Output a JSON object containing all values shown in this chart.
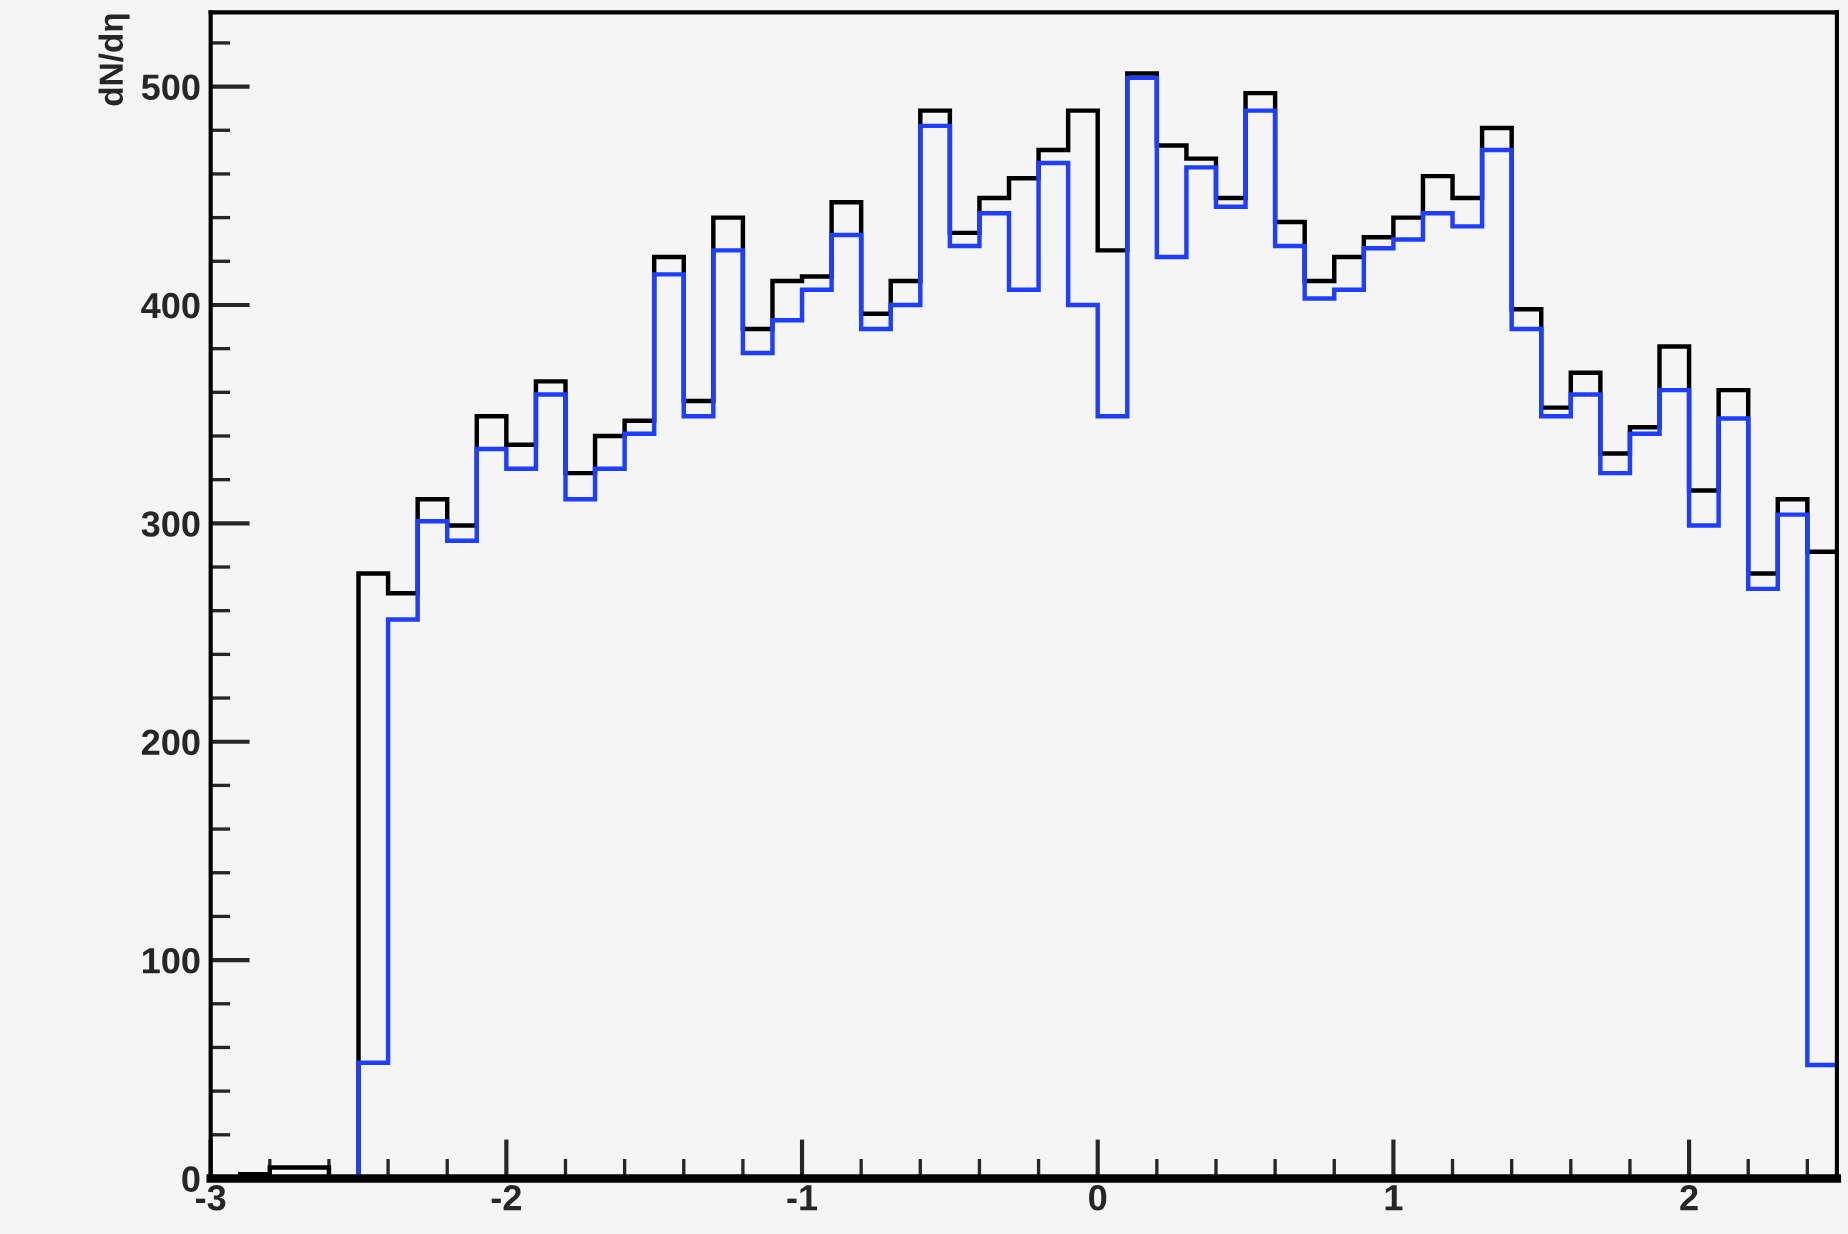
{
  "chart_data": {
    "type": "histogram",
    "ylabel": "dN/dη",
    "bins": [
      -3.0,
      -2.9,
      -2.8,
      -2.7,
      -2.6,
      -2.5,
      -2.4,
      -2.3,
      -2.2,
      -2.1,
      -2.0,
      -1.9,
      -1.8,
      -1.7,
      -1.6,
      -1.5,
      -1.4,
      -1.3,
      -1.2,
      -1.1,
      -1.0,
      -0.9,
      -0.8,
      -0.7,
      -0.6,
      -0.5,
      -0.4,
      -0.3,
      -0.2,
      -0.1,
      0.0,
      0.1,
      0.2,
      0.3,
      0.4,
      0.5,
      0.6,
      0.7,
      0.8,
      0.9,
      1.0,
      1.1,
      1.2,
      1.3,
      1.4,
      1.5,
      1.6,
      1.7,
      1.8,
      1.9,
      2.0,
      2.1,
      2.2,
      2.3,
      2.4,
      2.5
    ],
    "series": [
      {
        "color": "#000000",
        "values": [
          0,
          2,
          5,
          5,
          0,
          277,
          268,
          311,
          299,
          349,
          336,
          365,
          323,
          340,
          347,
          422,
          356,
          440,
          389,
          411,
          413,
          447,
          396,
          411,
          489,
          433,
          449,
          458,
          471,
          489,
          425,
          506,
          473,
          467,
          449,
          497,
          438,
          411,
          422,
          431,
          440,
          459,
          449,
          481,
          398,
          353,
          369,
          332,
          344,
          381,
          315,
          361,
          277,
          311,
          287
        ]
      },
      {
        "color": "#1f3fff",
        "values": [
          0,
          0,
          0,
          0,
          0,
          53,
          256,
          301,
          292,
          334,
          325,
          359,
          311,
          325,
          341,
          414,
          349,
          425,
          378,
          393,
          407,
          432,
          389,
          400,
          482,
          427,
          442,
          407,
          465,
          400,
          349,
          504,
          422,
          463,
          445,
          489,
          427,
          403,
          407,
          426,
          430,
          442,
          436,
          471,
          389,
          349,
          359,
          323,
          341,
          361,
          299,
          348,
          270,
          304,
          52
        ]
      }
    ],
    "xlim": [
      -3,
      2.5
    ],
    "xticks": [
      -3,
      -2,
      -1,
      0,
      1,
      2
    ],
    "ylim": [
      0,
      534
    ],
    "yticks": [
      0,
      100,
      200,
      300,
      400,
      500
    ],
    "grid": false,
    "legend": false
  }
}
